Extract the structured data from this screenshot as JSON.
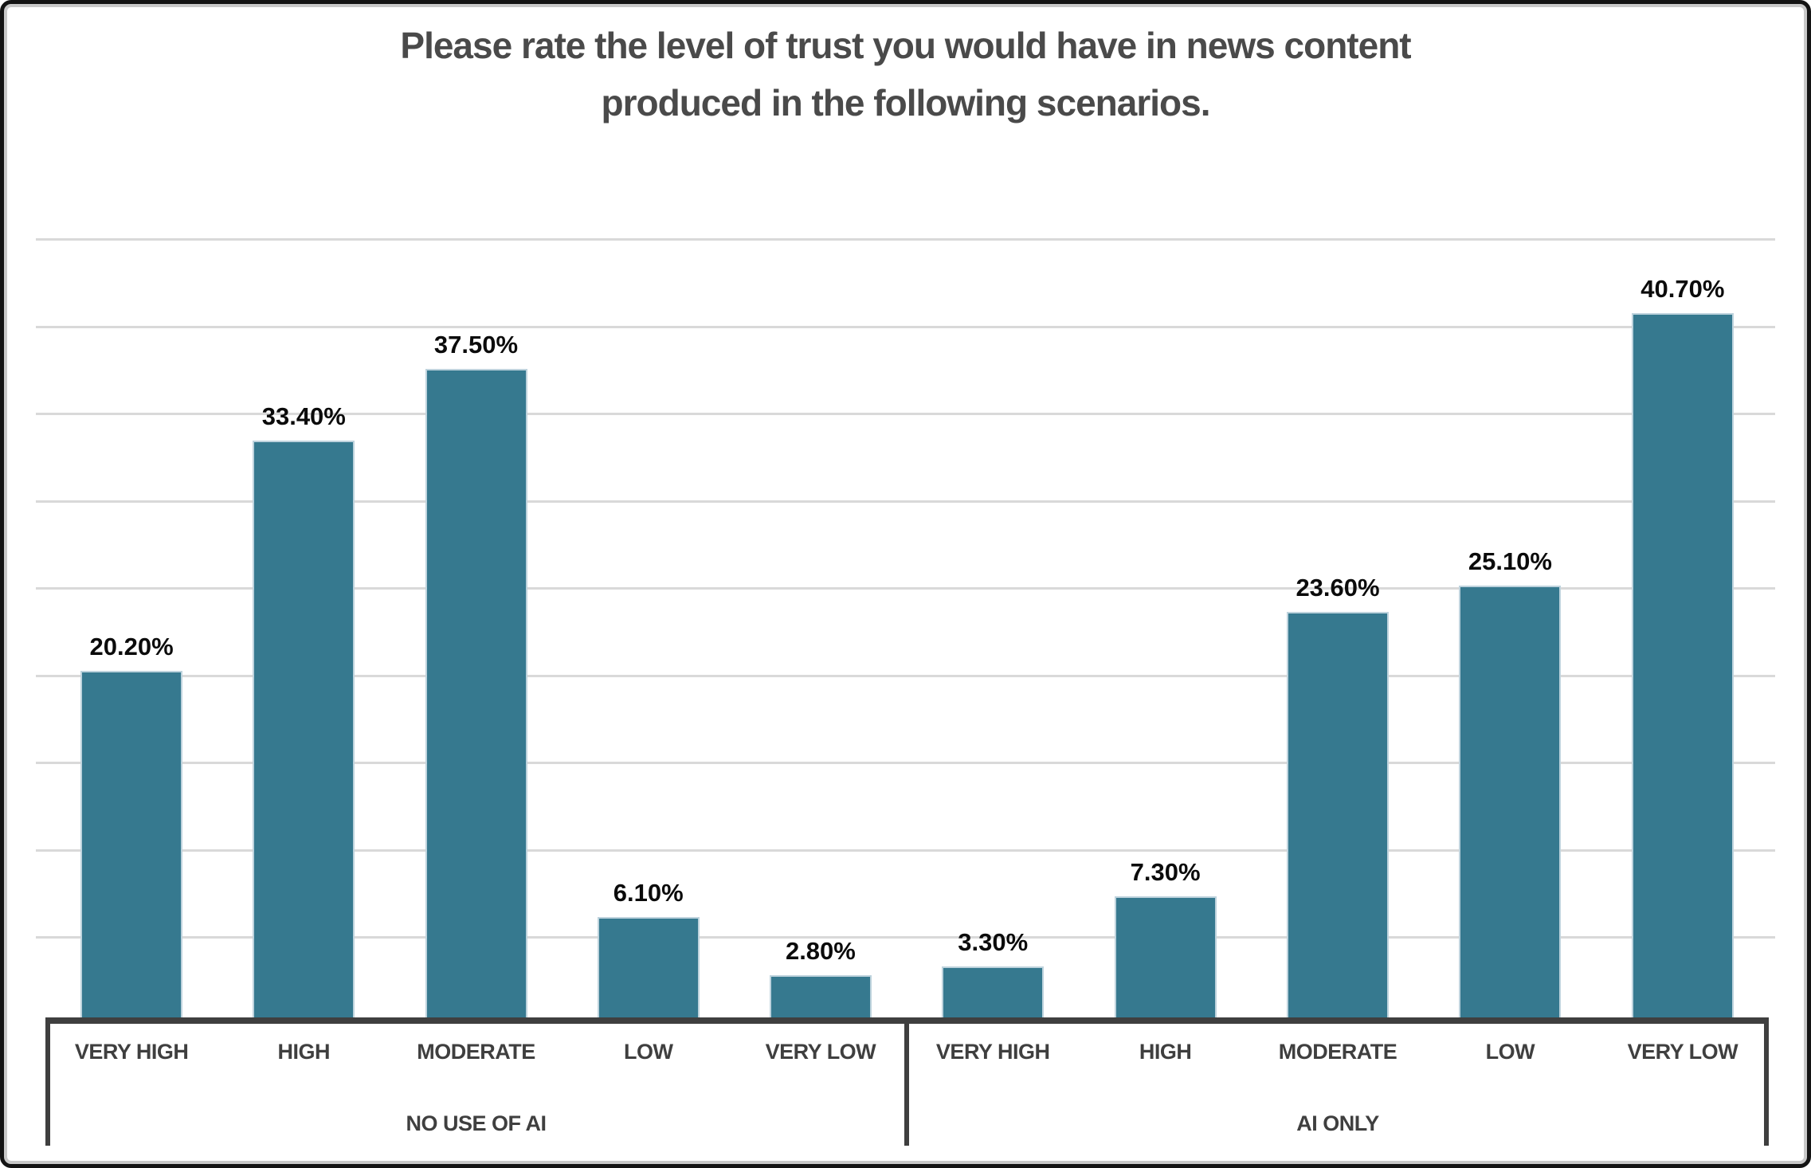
{
  "chart_data": {
    "type": "bar",
    "title": "Please rate the level of trust you would have in news content produced in the following scenarios.",
    "categories_per_group": [
      "VERY HIGH",
      "HIGH",
      "MODERATE",
      "LOW",
      "VERY LOW"
    ],
    "series": [
      {
        "name": "NO USE OF AI",
        "values": [
          20.2,
          33.4,
          37.5,
          6.1,
          2.8
        ],
        "labels": [
          "20.20%",
          "33.40%",
          "37.50%",
          "6.10%",
          "2.80%"
        ]
      },
      {
        "name": "AI ONLY",
        "values": [
          3.3,
          7.3,
          23.6,
          25.1,
          40.7
        ],
        "labels": [
          "3.30%",
          "7.30%",
          "23.60%",
          "25.10%",
          "40.70%"
        ]
      }
    ],
    "ylim": [
      0,
      45
    ],
    "gridline_step": 5,
    "grid": true,
    "legend": false,
    "bar_color": "#36798f",
    "bar_edge_color": "#bed3dd",
    "gridline_color": "#d9d9d9",
    "axis_color": "#3f3f3f",
    "title_color": "#4a4a4a",
    "value_label_color": "#0b0b0b"
  }
}
